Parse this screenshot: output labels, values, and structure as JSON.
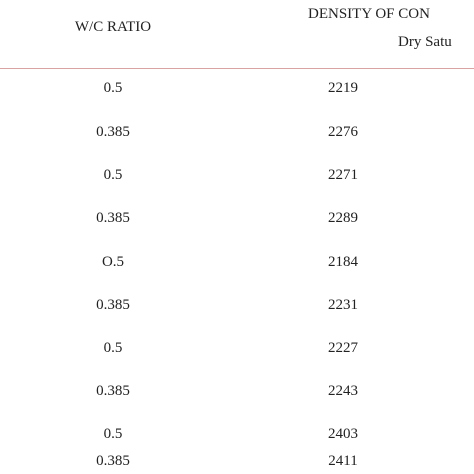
{
  "table": {
    "header": {
      "ratio": "W/C RATIO",
      "density": "DENSITY OF CON",
      "condition": "Dry Satu"
    },
    "rows": [
      [
        "0.5",
        "2219"
      ],
      [
        "0.385",
        "2276"
      ],
      [
        "0.5",
        "2271"
      ],
      [
        "0.385",
        "2289"
      ],
      [
        "O.5",
        "2184"
      ],
      [
        "0.385",
        "2231"
      ],
      [
        "0.5",
        "2227"
      ],
      [
        "0.385",
        "2243"
      ],
      [
        "0.5",
        "2403"
      ],
      [
        "0.385",
        "2411"
      ]
    ]
  }
}
